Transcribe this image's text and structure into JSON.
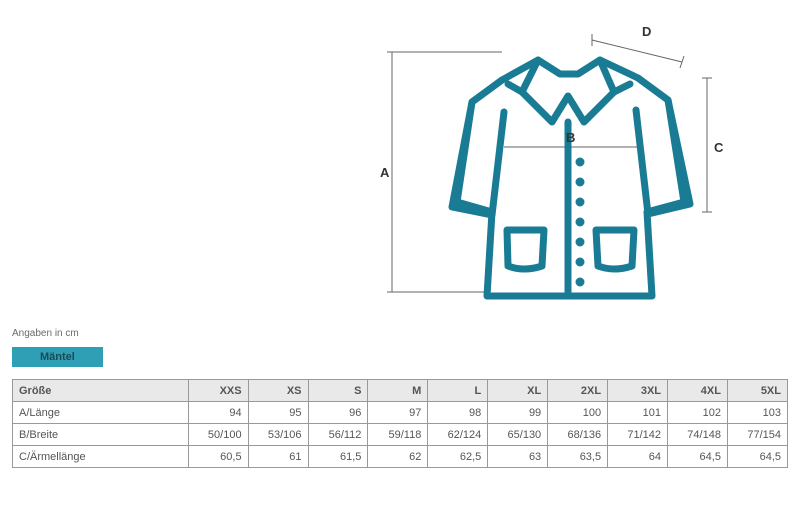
{
  "diagram": {
    "labels": {
      "A": "A",
      "B": "B",
      "C": "C",
      "D": "D"
    },
    "coat_stroke": "#1a7c94",
    "coat_stroke_width": 7,
    "guide_stroke": "#666666",
    "guide_stroke_width": 1
  },
  "note_text": "Angaben in cm",
  "tab_label": "Mäntel",
  "table": {
    "header_label": "Größe",
    "sizes": [
      "XXS",
      "XS",
      "S",
      "M",
      "L",
      "XL",
      "2XL",
      "3XL",
      "4XL",
      "5XL"
    ],
    "rows": [
      {
        "label": "A/Länge",
        "values": [
          "94",
          "95",
          "96",
          "97",
          "98",
          "99",
          "100",
          "101",
          "102",
          "103"
        ]
      },
      {
        "label": "B/Breite",
        "values": [
          "50/100",
          "53/106",
          "56/112",
          "59/118",
          "62/124",
          "65/130",
          "68/136",
          "71/142",
          "74/148",
          "77/154"
        ]
      },
      {
        "label": "C/Ärmellänge",
        "values": [
          "60,5",
          "61",
          "61,5",
          "62",
          "62,5",
          "63",
          "63,5",
          "64",
          "64,5",
          "64,5"
        ]
      }
    ]
  }
}
